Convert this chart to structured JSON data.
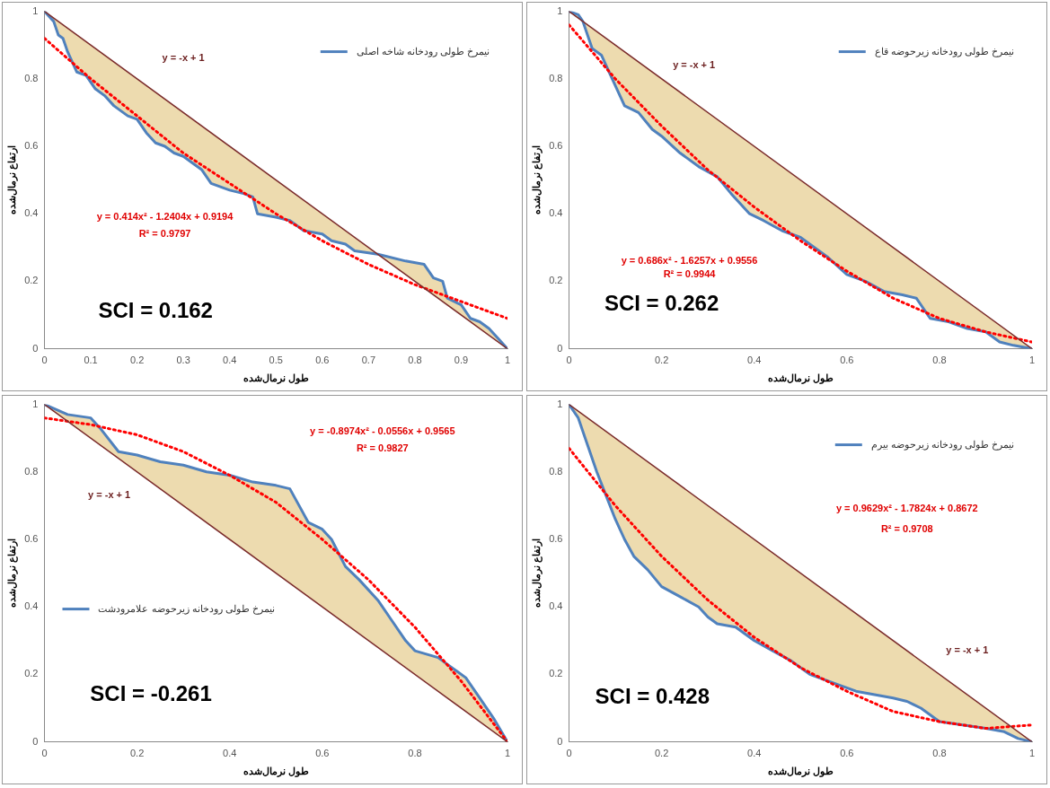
{
  "chart_data": [
    {
      "type": "line",
      "xlabel": "طول نرمال‌شده",
      "ylabel": "ارتفاع نرمال‌شده",
      "xlim": [
        0,
        1
      ],
      "ylim": [
        0,
        1
      ],
      "xticks": [
        0,
        0.1,
        0.2,
        0.3,
        0.4,
        0.5,
        0.6,
        0.7,
        0.8,
        0.9,
        1
      ],
      "yticks": [
        0,
        0.2,
        0.4,
        0.6,
        0.8,
        1
      ],
      "legend": "top right",
      "series": [
        {
          "name": "نیمرخ طولی رودخانه شاخه اصلی",
          "color": "#4f81bd",
          "x": [
            0,
            0.02,
            0.03,
            0.04,
            0.05,
            0.07,
            0.09,
            0.11,
            0.13,
            0.15,
            0.18,
            0.2,
            0.22,
            0.24,
            0.26,
            0.28,
            0.3,
            0.32,
            0.34,
            0.36,
            0.38,
            0.4,
            0.43,
            0.45,
            0.46,
            0.5,
            0.53,
            0.56,
            0.6,
            0.62,
            0.65,
            0.67,
            0.72,
            0.78,
            0.82,
            0.84,
            0.86,
            0.87,
            0.9,
            0.92,
            0.94,
            0.96,
            0.98,
            1
          ],
          "values": [
            1,
            0.97,
            0.93,
            0.92,
            0.88,
            0.82,
            0.81,
            0.77,
            0.75,
            0.72,
            0.69,
            0.68,
            0.64,
            0.61,
            0.6,
            0.58,
            0.57,
            0.55,
            0.53,
            0.49,
            0.48,
            0.47,
            0.46,
            0.45,
            0.4,
            0.39,
            0.38,
            0.35,
            0.34,
            0.32,
            0.31,
            0.29,
            0.28,
            0.26,
            0.25,
            0.21,
            0.2,
            0.15,
            0.13,
            0.09,
            0.08,
            0.06,
            0.03,
            0
          ]
        },
        {
          "type": "line",
          "color": "#ff0000",
          "line_style": "dotted",
          "x": [
            0,
            0.1,
            0.2,
            0.3,
            0.4,
            0.5,
            0.6,
            0.7,
            0.8,
            0.9,
            1
          ],
          "values": [
            0.92,
            0.8,
            0.69,
            0.58,
            0.49,
            0.4,
            0.32,
            0.25,
            0.19,
            0.14,
            0.09
          ]
        },
        {
          "type": "line",
          "color": "#7b2c2c",
          "x": [
            0,
            1
          ],
          "values": [
            1,
            0
          ]
        }
      ],
      "annotations": [
        "y = -x + 1",
        "y = 0.414x² - 1.2404x + 0.9194",
        "R² = 0.9797",
        "SCI = 0.162"
      ]
    },
    {
      "type": "line",
      "xlabel": "طول نرمال‌شده",
      "ylabel": "ارتفاع نرمال‌شده",
      "xlim": [
        0,
        1
      ],
      "ylim": [
        0,
        1
      ],
      "xticks": [
        0,
        0.2,
        0.4,
        0.6,
        0.8,
        1
      ],
      "yticks": [
        0,
        0.2,
        0.4,
        0.6,
        0.8,
        1
      ],
      "legend": "top right",
      "series": [
        {
          "name": "نیمرخ طولی رودخانه زیرحوضه قاع",
          "color": "#4f81bd",
          "x": [
            0,
            0.02,
            0.03,
            0.04,
            0.05,
            0.07,
            0.09,
            0.12,
            0.15,
            0.18,
            0.2,
            0.24,
            0.28,
            0.32,
            0.35,
            0.39,
            0.42,
            0.46,
            0.5,
            0.53,
            0.56,
            0.6,
            0.64,
            0.68,
            0.72,
            0.75,
            0.78,
            0.82,
            0.86,
            0.9,
            0.93,
            0.96,
            1
          ],
          "values": [
            1,
            0.99,
            0.97,
            0.93,
            0.89,
            0.87,
            0.81,
            0.72,
            0.7,
            0.65,
            0.63,
            0.58,
            0.54,
            0.51,
            0.46,
            0.4,
            0.38,
            0.35,
            0.33,
            0.3,
            0.27,
            0.22,
            0.2,
            0.17,
            0.16,
            0.15,
            0.09,
            0.08,
            0.06,
            0.05,
            0.02,
            0.01,
            0
          ]
        },
        {
          "type": "line",
          "color": "#ff0000",
          "line_style": "dotted",
          "x": [
            0,
            0.1,
            0.2,
            0.3,
            0.4,
            0.5,
            0.6,
            0.7,
            0.8,
            0.9,
            1
          ],
          "values": [
            0.96,
            0.8,
            0.66,
            0.53,
            0.42,
            0.32,
            0.23,
            0.15,
            0.09,
            0.05,
            0.02
          ]
        },
        {
          "type": "line",
          "color": "#7b2c2c",
          "x": [
            0,
            1
          ],
          "values": [
            1,
            0
          ]
        }
      ],
      "annotations": [
        "y = -x + 1",
        "y = 0.686x² - 1.6257x + 0.9556",
        "R² = 0.9944",
        "SCI = 0.262"
      ]
    },
    {
      "type": "line",
      "xlabel": "طول نرمال‌شده",
      "ylabel": "ارتفاع نرمال‌شده",
      "xlim": [
        0,
        1
      ],
      "ylim": [
        0,
        1
      ],
      "xticks": [
        0,
        0.2,
        0.4,
        0.6,
        0.8,
        1
      ],
      "yticks": [
        0,
        0.2,
        0.4,
        0.6,
        0.8,
        1
      ],
      "legend": "left",
      "series": [
        {
          "name": "نیمرخ طولی رودخانه زیرحوضه علامرودشت",
          "color": "#4f81bd",
          "x": [
            0,
            0.05,
            0.1,
            0.12,
            0.16,
            0.2,
            0.25,
            0.3,
            0.35,
            0.4,
            0.45,
            0.5,
            0.53,
            0.55,
            0.57,
            0.6,
            0.62,
            0.65,
            0.68,
            0.72,
            0.75,
            0.78,
            0.8,
            0.85,
            0.88,
            0.91,
            0.94,
            0.97,
            1
          ],
          "values": [
            1,
            0.97,
            0.96,
            0.93,
            0.86,
            0.85,
            0.83,
            0.82,
            0.8,
            0.79,
            0.77,
            0.76,
            0.75,
            0.7,
            0.65,
            0.63,
            0.6,
            0.52,
            0.48,
            0.42,
            0.36,
            0.3,
            0.27,
            0.25,
            0.22,
            0.19,
            0.13,
            0.07,
            0
          ]
        },
        {
          "type": "line",
          "color": "#ff0000",
          "line_style": "dotted",
          "x": [
            0,
            0.1,
            0.2,
            0.3,
            0.4,
            0.5,
            0.6,
            0.7,
            0.8,
            0.9,
            1
          ],
          "values": [
            0.96,
            0.94,
            0.91,
            0.86,
            0.79,
            0.71,
            0.6,
            0.48,
            0.34,
            0.18,
            0
          ]
        },
        {
          "type": "line",
          "color": "#7b2c2c",
          "x": [
            0,
            1
          ],
          "values": [
            1,
            0
          ]
        }
      ],
      "annotations": [
        "y = -x + 1",
        "y = -0.8974x² - 0.0556x + 0.9565",
        "R² = 0.9827",
        "SCI = -0.261"
      ]
    },
    {
      "type": "line",
      "xlabel": "طول نرمال‌شده",
      "ylabel": "ارتفاع نرمال‌شده",
      "xlim": [
        0,
        1
      ],
      "ylim": [
        0,
        1
      ],
      "xticks": [
        0,
        0.2,
        0.4,
        0.6,
        0.8,
        1
      ],
      "yticks": [
        0,
        0.2,
        0.4,
        0.6,
        0.8,
        1
      ],
      "legend": "top right",
      "series": [
        {
          "name": "نیمرخ طولی رودخانه زیرحوضه بیرم",
          "color": "#4f81bd",
          "x": [
            0,
            0.02,
            0.04,
            0.06,
            0.08,
            0.1,
            0.12,
            0.14,
            0.17,
            0.2,
            0.24,
            0.28,
            0.3,
            0.32,
            0.36,
            0.4,
            0.44,
            0.48,
            0.52,
            0.56,
            0.6,
            0.62,
            0.66,
            0.7,
            0.73,
            0.76,
            0.78,
            0.8,
            0.85,
            0.9,
            0.94,
            0.97,
            1
          ],
          "values": [
            1,
            0.96,
            0.88,
            0.8,
            0.73,
            0.66,
            0.6,
            0.55,
            0.51,
            0.46,
            0.43,
            0.4,
            0.37,
            0.35,
            0.34,
            0.3,
            0.27,
            0.24,
            0.2,
            0.18,
            0.16,
            0.15,
            0.14,
            0.13,
            0.12,
            0.1,
            0.08,
            0.06,
            0.05,
            0.04,
            0.03,
            0.01,
            0
          ]
        },
        {
          "type": "line",
          "color": "#ff0000",
          "line_style": "dotted",
          "x": [
            0,
            0.1,
            0.2,
            0.3,
            0.4,
            0.5,
            0.6,
            0.7,
            0.8,
            0.9,
            1
          ],
          "values": [
            0.87,
            0.7,
            0.55,
            0.42,
            0.31,
            0.22,
            0.15,
            0.09,
            0.06,
            0.04,
            0.05
          ]
        },
        {
          "type": "line",
          "color": "#7b2c2c",
          "x": [
            0,
            1
          ],
          "values": [
            1,
            0
          ]
        }
      ],
      "annotations": [
        "y = -x + 1",
        "y = 0.9629x² - 1.7824x + 0.8672",
        "R² = 0.9708",
        "SCI = 0.428"
      ]
    }
  ]
}
